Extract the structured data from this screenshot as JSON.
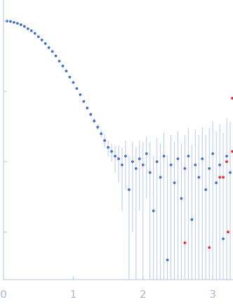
{
  "chart_data": {
    "type": "scatter",
    "x_scale": "linear",
    "y_scale": "log",
    "xlim": [
      0,
      3.29
    ],
    "ylim": [
      0.00021,
      2
    ],
    "xticks": [
      0,
      1,
      2,
      3
    ],
    "yticks": [
      1,
      0.1,
      0.01,
      0.001
    ],
    "ytick_labels": false,
    "axis_color": "#b7c4e2",
    "error_color": "#b9c9ea",
    "series": [
      {
        "color": "#4470c2",
        "x": [
          0.05,
          0.1,
          0.15,
          0.2,
          0.25,
          0.3,
          0.35,
          0.4,
          0.45,
          0.5,
          0.55,
          0.6,
          0.65,
          0.7,
          0.75,
          0.8,
          0.85,
          0.9,
          0.95,
          1.0,
          1.05,
          1.1,
          1.15,
          1.2,
          1.25,
          1.3,
          1.35,
          1.4,
          1.45,
          1.5,
          1.55,
          1.6,
          1.65,
          1.7,
          1.75,
          1.8,
          1.85,
          1.9,
          1.95,
          2.0,
          2.05,
          2.1,
          2.15,
          2.2,
          2.25,
          2.3,
          2.35,
          2.4,
          2.45,
          2.5,
          2.55,
          2.6,
          2.65,
          2.7,
          2.75,
          2.8,
          2.85,
          2.9,
          2.95,
          3.0,
          3.05,
          3.1,
          3.15,
          3.2,
          3.25
        ],
        "values": [
          1.0,
          0.99,
          0.96,
          0.93,
          0.89,
          0.84,
          0.78,
          0.73,
          0.67,
          0.6,
          0.54,
          0.48,
          0.42,
          0.37,
          0.32,
          0.27,
          0.23,
          0.195,
          0.16,
          0.134,
          0.11,
          0.09,
          0.072,
          0.058,
          0.047,
          0.038,
          0.031,
          0.025,
          0.02,
          0.016,
          0.014,
          0.012,
          0.011,
          0.009,
          0.012,
          0.004,
          0.01,
          0.008,
          0.011,
          0.009,
          0.013,
          0.007,
          0.002,
          0.01,
          0.006,
          0.012,
          0.0004,
          0.009,
          0.005,
          0.011,
          0.003,
          0.008,
          0.012,
          0.0015,
          0.009,
          0.006,
          0.011,
          0.004,
          0.008,
          0.013,
          0.005,
          0.009,
          0.0008,
          0.012,
          0.007
        ],
        "errors": [
          0.005,
          0.005,
          0.005,
          0.005,
          0.004,
          0.004,
          0.004,
          0.004,
          0.003,
          0.003,
          0.003,
          0.003,
          0.003,
          0.003,
          0.003,
          0.002,
          0.002,
          0.002,
          0.002,
          0.002,
          0.003,
          0.003,
          0.003,
          0.003,
          0.003,
          0.003,
          0.003,
          0.003,
          0.004,
          0.004,
          0.004,
          0.005,
          0.006,
          0.007,
          0.008,
          0.008,
          0.009,
          0.008,
          0.009,
          0.01,
          0.01,
          0.012,
          0.01,
          0.012,
          0.012,
          0.014,
          0.012,
          0.015,
          0.014,
          0.016,
          0.015,
          0.016,
          0.018,
          0.016,
          0.02,
          0.018,
          0.02,
          0.02,
          0.022,
          0.025,
          0.022,
          0.025,
          0.025,
          0.03,
          0.03
        ]
      },
      {
        "color": "#e0332f",
        "x": [
          2.6,
          2.95,
          3.1,
          3.15,
          3.2,
          3.22,
          3.28,
          3.28
        ],
        "values": [
          0.0007,
          0.0006,
          0.006,
          0.006,
          0.01,
          0.001,
          0.014,
          0.08
        ]
      }
    ]
  }
}
